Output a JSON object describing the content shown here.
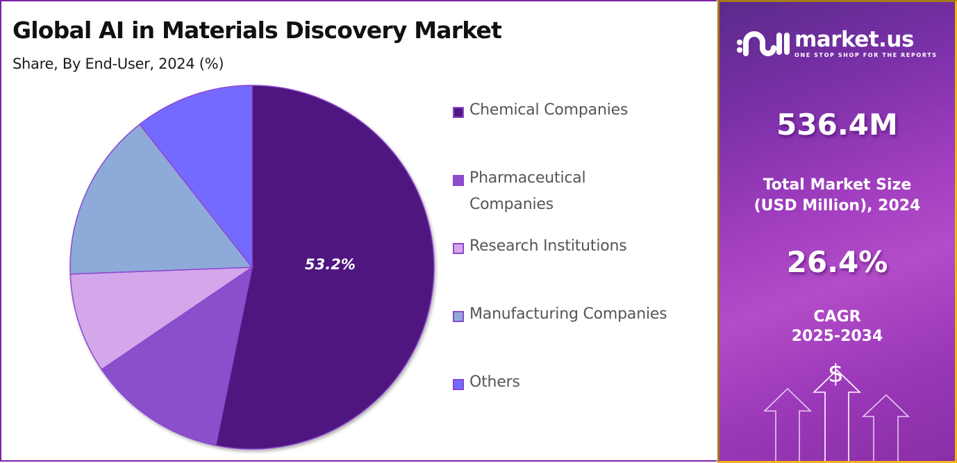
{
  "header": {
    "title": "Global AI in Materials Discovery Market",
    "subtitle": "Share, By End-User, 2024 (%)"
  },
  "pie": {
    "highlight_label": "53.2%"
  },
  "legend": {
    "items": [
      {
        "label": "Chemical Companies",
        "color": "#4f1780"
      },
      {
        "label": "Pharmaceutical Companies",
        "label_line1": "Pharmaceutical",
        "label_line2": "Companies",
        "color": "#8b4fcb"
      },
      {
        "label": "Research Institutions",
        "color": "#d4a7ea"
      },
      {
        "label": "Manufacturing Companies",
        "color": "#8eaad9"
      },
      {
        "label": "Others",
        "color": "#756bff"
      }
    ]
  },
  "sidebar": {
    "brand": {
      "name": "market.us",
      "tagline": "ONE STOP SHOP FOR THE REPORTS"
    },
    "market_size_value": "536.4M",
    "market_size_caption_line1": "Total Market Size",
    "market_size_caption_line2": "(USD Million), 2024",
    "cagr_value": "26.4%",
    "cagr_caption_line1": "CAGR",
    "cagr_caption_line2": "2025-2034",
    "dollar_icon": "$"
  },
  "colors": {
    "left_border": "#7a22a8",
    "right_border": "#f2b621",
    "slice_stroke": "#8b47d0"
  },
  "chart_data": {
    "type": "pie",
    "title": "Global AI in Materials Discovery Market",
    "subtitle": "Share, By End-User, 2024 (%)",
    "categories": [
      "Chemical Companies",
      "Pharmaceutical Companies",
      "Research Institutions",
      "Manufacturing Companies",
      "Others"
    ],
    "values": [
      53.2,
      12.3,
      8.9,
      15.0,
      10.6
    ],
    "colors": [
      "#4f1780",
      "#8b4fcb",
      "#d4a7ea",
      "#8eaad9",
      "#756bff"
    ],
    "data_labels": {
      "Chemical Companies": "53.2%"
    },
    "start_angle": "12 o'clock, clockwise",
    "legend_position": "right"
  }
}
